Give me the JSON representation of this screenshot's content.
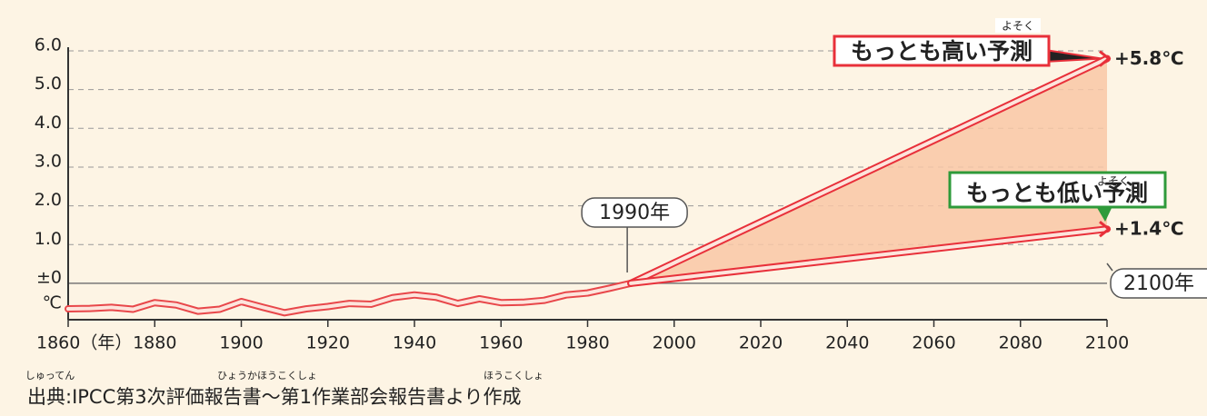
{
  "chart_data": {
    "type": "line",
    "xlim": [
      1860,
      2100
    ],
    "ylim": [
      -0.94,
      6
    ],
    "yticks": [
      {
        "value": 6,
        "label": "6.0"
      },
      {
        "value": 5,
        "label": "5.0"
      },
      {
        "value": 4,
        "label": "4.0"
      },
      {
        "value": 3,
        "label": "3.0"
      },
      {
        "value": 2,
        "label": "2.0"
      },
      {
        "value": 1,
        "label": "1.0"
      },
      {
        "value": 0,
        "label": "±0"
      }
    ],
    "y_unit": "℃",
    "xticks": [
      {
        "value": 1860,
        "label": "1860（年）"
      },
      1880,
      1900,
      1920,
      1940,
      1960,
      1980,
      2000,
      2020,
      2040,
      2060,
      2080,
      2100
    ],
    "grid": true,
    "fill_between": true,
    "fill_color": "#f9c7a6",
    "series": [
      {
        "color": "#e8474a",
        "x": [
          1860,
          1865,
          1870,
          1875,
          1880,
          1885,
          1890,
          1895,
          1900,
          1905,
          1910,
          1915,
          1920,
          1925,
          1930,
          1935,
          1940,
          1945,
          1950,
          1955,
          1960,
          1965,
          1970,
          1975,
          1980,
          1985,
          1990
        ],
        "values": [
          -0.66,
          -0.65,
          -0.62,
          -0.67,
          -0.5,
          -0.56,
          -0.72,
          -0.67,
          -0.47,
          -0.62,
          -0.76,
          -0.66,
          -0.6,
          -0.52,
          -0.54,
          -0.37,
          -0.3,
          -0.36,
          -0.52,
          -0.4,
          -0.5,
          -0.49,
          -0.44,
          -0.3,
          -0.25,
          -0.13,
          0
        ]
      },
      {
        "name": "もっとも高い予測",
        "name_ruby": "よそく",
        "color": "#e8303a",
        "x": [
          1990,
          2100
        ],
        "values": [
          0,
          5.8
        ],
        "value_labels": [
          null,
          "+5.8℃"
        ]
      },
      {
        "name": "もっとも低い予測",
        "name_ruby": "よそく",
        "color": "#e8303a",
        "x": [
          1990,
          2100
        ],
        "values": [
          0,
          1.4
        ],
        "value_labels": [
          null,
          "+1.4℃"
        ]
      }
    ],
    "annotations": [
      {
        "text": "1990年",
        "x": 1990
      },
      {
        "text": "2100年",
        "x": 2100
      }
    ],
    "source": {
      "text": "出典:IPCC第3次評価報告書〜第1作業部会報告書より作成",
      "ruby": [
        "しゅってん",
        "ひょうかほうこくしょ",
        "ほうこくしょ"
      ]
    }
  }
}
